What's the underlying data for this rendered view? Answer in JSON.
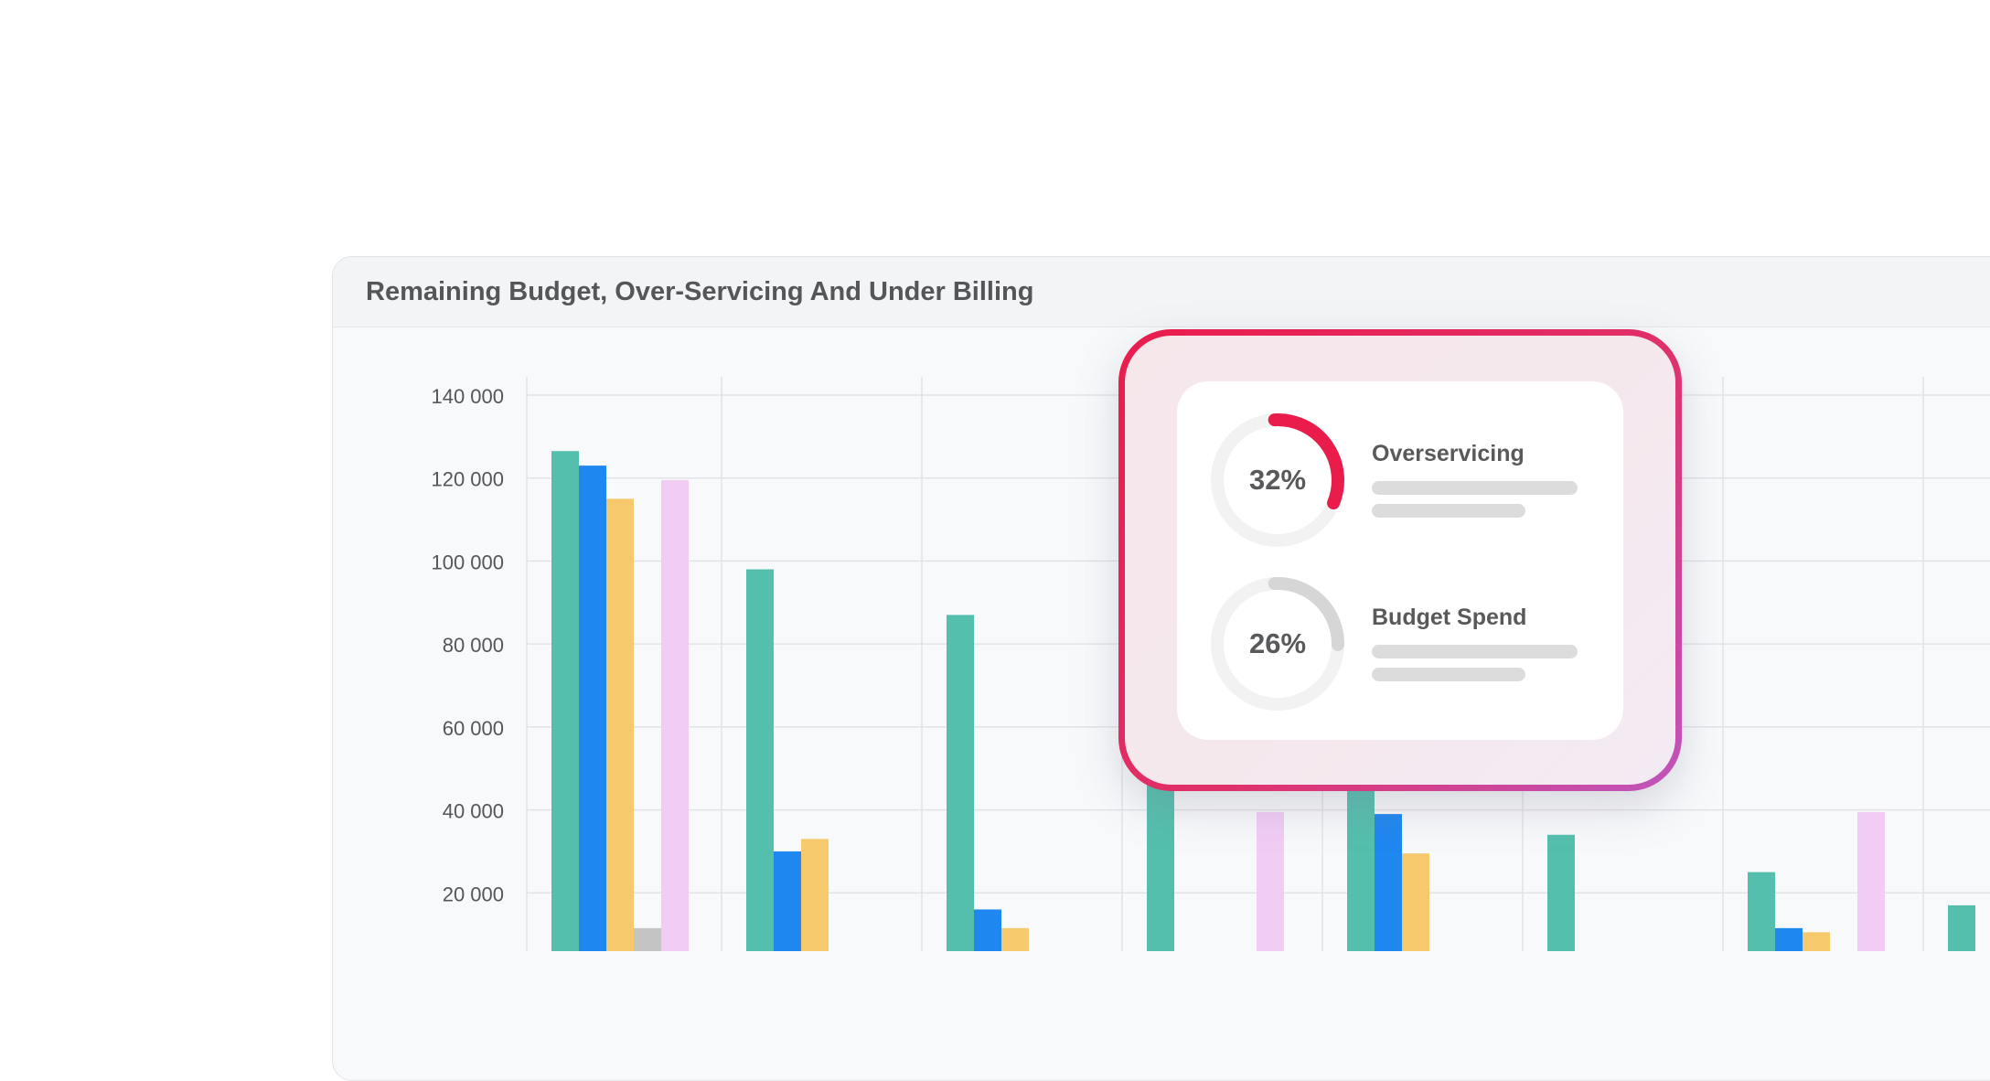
{
  "panel": {
    "title": "Remaining Budget, Over-Servicing And Under Billing"
  },
  "card": {
    "metrics": [
      {
        "value_label": "32%",
        "value": 32,
        "label": "Overservicing",
        "color": "#ea1c4c"
      },
      {
        "value_label": "26%",
        "value": 26,
        "label": "Budget Spend",
        "color": "#d6d6d6"
      }
    ]
  },
  "chart_data": {
    "type": "bar",
    "ylim": [
      0,
      140000
    ],
    "ytick_labels": [
      "140 000",
      "120 000",
      "100 000",
      "80 000",
      "60 000",
      "40 000",
      "20 000"
    ],
    "ytick_values": [
      140000,
      120000,
      100000,
      80000,
      60000,
      40000,
      20000
    ],
    "grid": true,
    "series": [
      {
        "color": "#55bfae",
        "values": [
          126500,
          98000,
          87000,
          57000,
          46000,
          34000,
          25000,
          17000
        ]
      },
      {
        "color": "#1e87f0",
        "values": [
          123000,
          30000,
          16000,
          null,
          39000,
          1500,
          11500,
          null
        ]
      },
      {
        "color": "#f5c96c",
        "values": [
          115000,
          33000,
          11500,
          1500,
          29500,
          2500,
          10500,
          null
        ]
      },
      {
        "color": "#c4c4c4",
        "values": [
          11500,
          null,
          null,
          null,
          null,
          2500,
          null,
          null
        ]
      },
      {
        "color": "#f1cdf4",
        "values": [
          119500,
          null,
          null,
          39500,
          null,
          null,
          39500,
          null
        ]
      }
    ]
  }
}
